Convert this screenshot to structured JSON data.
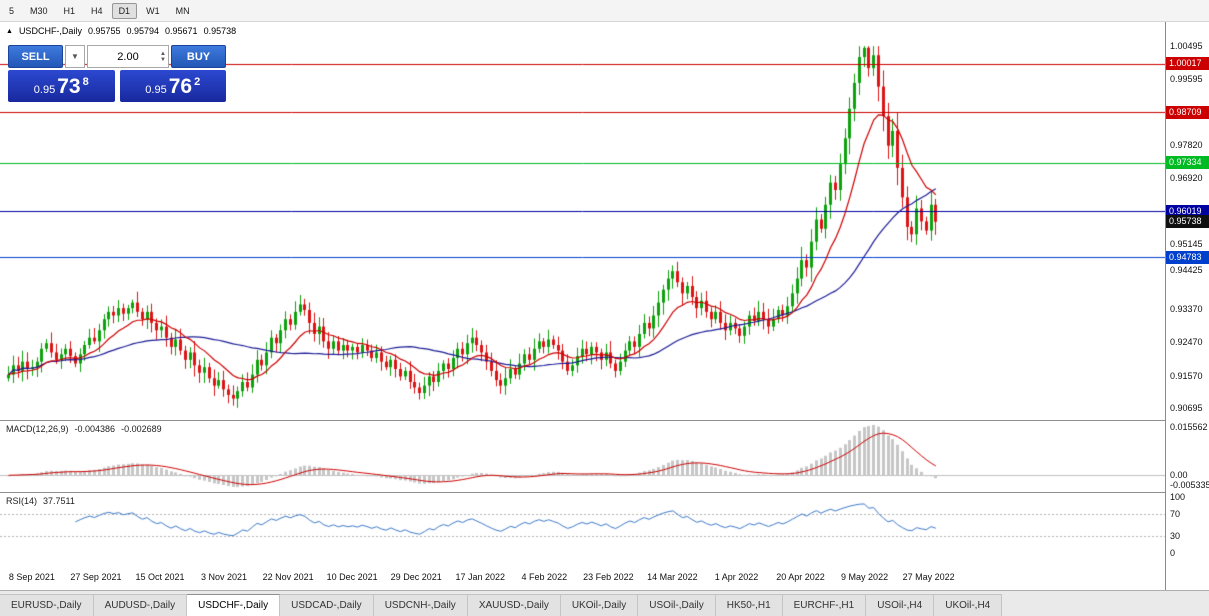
{
  "toolbar": {
    "timeframes": [
      "5",
      "M30",
      "H1",
      "H4",
      "D1",
      "W1",
      "MN"
    ],
    "active_timeframe": "D1"
  },
  "chart_header": {
    "collapse_icon": "▲",
    "symbol": "USDCHF-,Daily",
    "open": "0.95755",
    "high": "0.95794",
    "low": "0.95671",
    "close": "0.95738"
  },
  "trade_panel": {
    "sell_label": "SELL",
    "buy_label": "BUY",
    "volume": "2.00",
    "bid": {
      "prefix": "0.95",
      "big": "73",
      "sup": "8"
    },
    "ask": {
      "prefix": "0.95",
      "big": "76",
      "sup": "2"
    }
  },
  "price_axis": {
    "ticks": [
      "1.00495",
      "0.99595",
      "0.97820",
      "0.96920",
      "0.95145",
      "0.94425",
      "0.93370",
      "0.92470",
      "0.91570",
      "0.90695"
    ],
    "badges": [
      {
        "label": "1.00017",
        "price": 1.00017,
        "color": "#cc0000"
      },
      {
        "label": "0.98709",
        "price": 0.98709,
        "color": "#cc0000"
      },
      {
        "label": "0.97334",
        "price": 0.97334,
        "color": "#00bb22"
      },
      {
        "label": "0.96019",
        "price": 0.96019,
        "color": "#0000a0"
      },
      {
        "label": "0.95738",
        "price": 0.95738,
        "color": "#101010"
      },
      {
        "label": "0.94783",
        "price": 0.94783,
        "color": "#0040cc"
      }
    ]
  },
  "hlines": [
    {
      "price": 1.00017,
      "color": "#cc0000"
    },
    {
      "price": 0.98709,
      "color": "#cc0000"
    },
    {
      "price": 0.97334,
      "color": "#00bb22"
    },
    {
      "price": 0.96019,
      "color": "#0000a0"
    },
    {
      "price": 0.94783,
      "color": "#0040cc"
    }
  ],
  "date_axis": [
    "8 Sep 2021",
    "27 Sep 2021",
    "15 Oct 2021",
    "3 Nov 2021",
    "22 Nov 2021",
    "10 Dec 2021",
    "29 Dec 2021",
    "17 Jan 2022",
    "4 Feb 2022",
    "23 Feb 2022",
    "14 Mar 2022",
    "1 Apr 2022",
    "20 Apr 2022",
    "9 May 2022",
    "27 May 2022"
  ],
  "macd_panel": {
    "label": "MACD(12,26,9)",
    "value_main": "-0.004386",
    "value_signal": "-0.002689",
    "axis_top": "0.015562",
    "axis_zero": "0.00",
    "axis_bottom": "-0.005335"
  },
  "rsi_panel": {
    "label": "RSI(14)",
    "value": "37.7511",
    "axis": [
      "100",
      "70",
      "30",
      "0"
    ],
    "levels": [
      70,
      30
    ]
  },
  "tabs": [
    "EURUSD-,Daily",
    "AUDUSD-,Daily",
    "USDCHF-,Daily",
    "USDCAD-,Daily",
    "USDCNH-,Daily",
    "XAUUSD-,Daily",
    "UKOil-,Daily",
    "USOil-,Daily",
    "HK50-,H1",
    "EURCHF-,H1",
    "USOil-,H4",
    "UKOil-,H4"
  ],
  "active_tab": "USDCHF-,Daily",
  "colors": {
    "candle_up": "#0da10d",
    "candle_down": "#dc1414",
    "macd_hist": "#c6c6c6",
    "macd_signal": "#cc0000",
    "rsi_line": "#3c78c8"
  },
  "chart_data": {
    "type": "candlestick",
    "symbol": "USDCHF",
    "timeframe": "Daily",
    "title": "USDCHF-,Daily",
    "price_min": 0.9037,
    "price_max": 1.0115,
    "open_first": 0.915,
    "last_close": 0.95738,
    "high_max": 1.00495,
    "closes": [
      0.916,
      0.9185,
      0.917,
      0.9195,
      0.9175,
      0.918,
      0.9195,
      0.923,
      0.9245,
      0.922,
      0.92,
      0.9215,
      0.923,
      0.921,
      0.919,
      0.9215,
      0.924,
      0.926,
      0.925,
      0.928,
      0.931,
      0.933,
      0.932,
      0.934,
      0.9325,
      0.934,
      0.9355,
      0.933,
      0.931,
      0.933,
      0.93,
      0.928,
      0.929,
      0.926,
      0.9235,
      0.9255,
      0.9225,
      0.92,
      0.922,
      0.9185,
      0.9165,
      0.918,
      0.915,
      0.913,
      0.9145,
      0.912,
      0.9105,
      0.9095,
      0.9115,
      0.914,
      0.9125,
      0.916,
      0.92,
      0.9185,
      0.922,
      0.926,
      0.9245,
      0.928,
      0.931,
      0.9295,
      0.933,
      0.935,
      0.9335,
      0.93,
      0.927,
      0.929,
      0.925,
      0.923,
      0.925,
      0.9225,
      0.924,
      0.9225,
      0.9235,
      0.922,
      0.924,
      0.9225,
      0.9205,
      0.922,
      0.9195,
      0.918,
      0.92,
      0.9175,
      0.9155,
      0.917,
      0.914,
      0.9125,
      0.911,
      0.913,
      0.9155,
      0.914,
      0.917,
      0.919,
      0.9175,
      0.9205,
      0.923,
      0.9215,
      0.9245,
      0.926,
      0.924,
      0.922,
      0.9195,
      0.917,
      0.9145,
      0.913,
      0.915,
      0.9175,
      0.916,
      0.919,
      0.9215,
      0.92,
      0.923,
      0.925,
      0.9235,
      0.9255,
      0.924,
      0.9225,
      0.9195,
      0.917,
      0.9185,
      0.921,
      0.923,
      0.9215,
      0.9235,
      0.922,
      0.92,
      0.922,
      0.919,
      0.917,
      0.9195,
      0.9225,
      0.925,
      0.9235,
      0.927,
      0.93,
      0.9285,
      0.932,
      0.9355,
      0.939,
      0.942,
      0.944,
      0.941,
      0.938,
      0.94,
      0.937,
      0.934,
      0.936,
      0.933,
      0.931,
      0.933,
      0.93,
      0.928,
      0.93,
      0.9285,
      0.9265,
      0.929,
      0.932,
      0.9305,
      0.933,
      0.931,
      0.929,
      0.931,
      0.9335,
      0.932,
      0.9345,
      0.938,
      0.942,
      0.947,
      0.945,
      0.952,
      0.958,
      0.9555,
      0.962,
      0.968,
      0.966,
      0.973,
      0.98,
      0.988,
      0.995,
      1.002,
      1.0045,
      0.999,
      1.0025,
      0.994,
      0.986,
      0.978,
      0.982,
      0.972,
      0.964,
      0.956,
      0.954,
      0.961,
      0.9575,
      0.955,
      0.962,
      0.95738
    ],
    "indicators": {
      "ma_fast": {
        "type": "EMA",
        "period": 12,
        "color": "#cc0000"
      },
      "ma_slow": {
        "type": "SMA",
        "period": 34,
        "color": "#1c1c96"
      },
      "macd": {
        "fast": 12,
        "slow": 26,
        "signal": 9
      },
      "rsi": 14
    }
  }
}
